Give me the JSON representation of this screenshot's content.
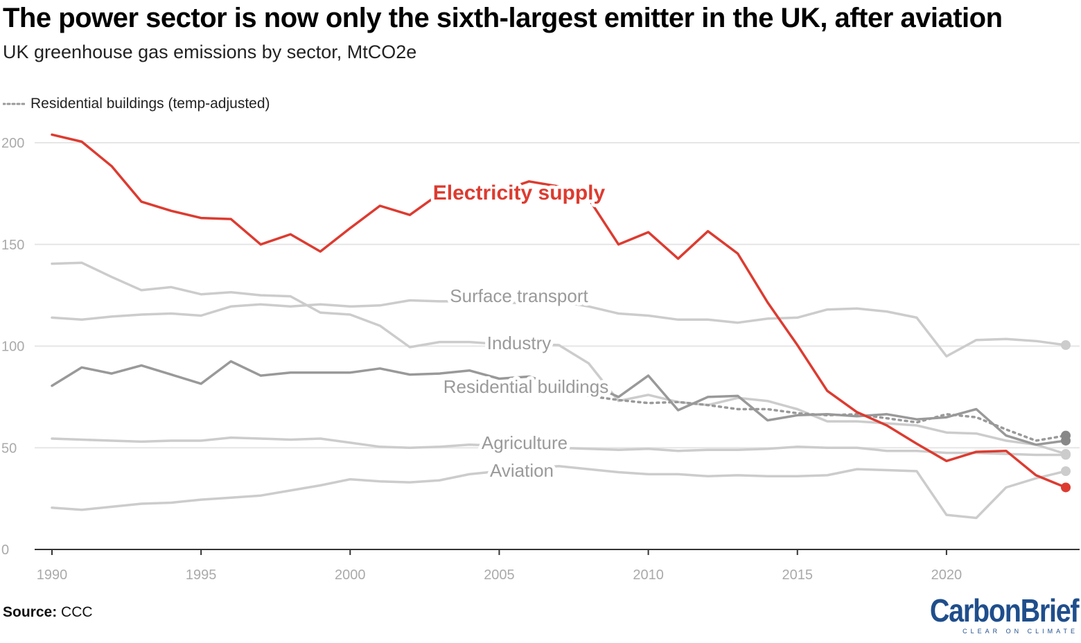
{
  "title": "The power sector is now only the sixth-largest emitter in the UK, after aviation",
  "subtitle": "UK greenhouse gas emissions by sector, MtCO2e",
  "legend": {
    "label": "Residential buildings (temp-adjusted)"
  },
  "source": {
    "label": "Source:",
    "text": "CCC"
  },
  "brand": {
    "name": "CarbonBrief",
    "tagline": "CLEAR ON CLIMATE"
  },
  "colors": {
    "electricity": "#dd3b30",
    "light": "#cccccc",
    "dark": "#999999",
    "grid": "#e6e6e6",
    "axis": "#333333"
  },
  "chart_data": {
    "type": "line",
    "title": "The power sector is now only the sixth-largest emitter in the UK, after aviation",
    "ylabel": "MtCO2e",
    "xlim": [
      1990,
      2024
    ],
    "ylim": [
      0,
      200
    ],
    "x_ticks": [
      1990,
      1995,
      2000,
      2005,
      2010,
      2015,
      2020
    ],
    "y_ticks": [
      0,
      50,
      100,
      150,
      200
    ],
    "grid": true,
    "series": [
      {
        "name": "Surface transport",
        "style": "light",
        "x": [
          1990,
          1991,
          1992,
          1993,
          1994,
          1995,
          1996,
          1997,
          1998,
          1999,
          2000,
          2001,
          2002,
          2003,
          2004,
          2005,
          2006,
          2007,
          2008,
          2009,
          2010,
          2011,
          2012,
          2013,
          2014,
          2015,
          2016,
          2017,
          2018,
          2019,
          2020,
          2021,
          2022,
          2023,
          2024
        ],
        "values": [
          114,
          113,
          114.5,
          115.5,
          116,
          115,
          119.5,
          120.5,
          119.5,
          120.5,
          119.5,
          120,
          122.5,
          122,
          122,
          121.5,
          121,
          122,
          119.5,
          116,
          115,
          113,
          113,
          111.5,
          113.5,
          114,
          118,
          118.5,
          117,
          114,
          95,
          103,
          103.5,
          102.5,
          100.5
        ]
      },
      {
        "name": "Industry",
        "style": "light",
        "x": [
          1990,
          1991,
          1992,
          1993,
          1994,
          1995,
          1996,
          1997,
          1998,
          1999,
          2000,
          2001,
          2002,
          2003,
          2004,
          2005,
          2006,
          2007,
          2008,
          2009,
          2010,
          2011,
          2012,
          2013,
          2014,
          2015,
          2016,
          2017,
          2018,
          2019,
          2020,
          2021,
          2022,
          2023,
          2024
        ],
        "values": [
          140.5,
          141,
          134,
          127.5,
          129,
          125.5,
          126.5,
          125,
          124.5,
          116.5,
          115.5,
          110,
          99.5,
          102,
          102,
          101,
          101,
          100.5,
          91.5,
          73,
          76,
          72.5,
          71,
          74.5,
          73,
          69,
          63,
          63,
          62,
          61,
          57.5,
          57,
          53.5,
          51.5,
          47
        ]
      },
      {
        "name": "Agriculture",
        "style": "light",
        "x": [
          1990,
          1991,
          1992,
          1993,
          1994,
          1995,
          1996,
          1997,
          1998,
          1999,
          2000,
          2001,
          2002,
          2003,
          2004,
          2005,
          2006,
          2007,
          2008,
          2009,
          2010,
          2011,
          2012,
          2013,
          2014,
          2015,
          2016,
          2017,
          2018,
          2019,
          2020,
          2021,
          2022,
          2023,
          2024
        ],
        "values": [
          54.5,
          54,
          53.5,
          53,
          53.5,
          53.5,
          55,
          54.5,
          54,
          54.5,
          52.5,
          50.5,
          50,
          50.5,
          51.5,
          51,
          51,
          50,
          49.5,
          49,
          49.5,
          48.5,
          49,
          49,
          49.5,
          50.5,
          50,
          50,
          48.5,
          48.5,
          47.5,
          47.5,
          47,
          46.5,
          46.5
        ]
      },
      {
        "name": "Aviation",
        "style": "light",
        "x": [
          1990,
          1991,
          1992,
          1993,
          1994,
          1995,
          1996,
          1997,
          1998,
          1999,
          2000,
          2001,
          2002,
          2003,
          2004,
          2005,
          2006,
          2007,
          2008,
          2009,
          2010,
          2011,
          2012,
          2013,
          2014,
          2015,
          2016,
          2017,
          2018,
          2019,
          2020,
          2021,
          2022,
          2023,
          2024
        ],
        "values": [
          20.5,
          19.5,
          21,
          22.5,
          23,
          24.5,
          25.5,
          26.5,
          29,
          31.5,
          34.5,
          33.5,
          33,
          34,
          37,
          38.5,
          40,
          41,
          39.5,
          38,
          37,
          37,
          36,
          36.5,
          36,
          36,
          36.5,
          39.5,
          39,
          38.5,
          17,
          15.5,
          30.5,
          35,
          38.5
        ]
      },
      {
        "name": "Residential buildings",
        "style": "dark",
        "x": [
          1990,
          1991,
          1992,
          1993,
          1994,
          1995,
          1996,
          1997,
          1998,
          1999,
          2000,
          2001,
          2002,
          2003,
          2004,
          2005,
          2006,
          2007,
          2008,
          2009,
          2010,
          2011,
          2012,
          2013,
          2014,
          2015,
          2016,
          2017,
          2018,
          2019,
          2020,
          2021,
          2022,
          2023,
          2024
        ],
        "values": [
          80.5,
          89.5,
          86.5,
          90.5,
          86,
          81.5,
          92.5,
          85.5,
          87,
          87,
          87,
          89,
          86,
          86.5,
          88,
          84,
          85,
          80.5,
          81.5,
          75,
          85.5,
          68.5,
          75,
          75.5,
          63.5,
          66,
          66.5,
          65.5,
          66.5,
          64,
          65,
          69,
          56,
          51.5,
          53.5
        ]
      },
      {
        "name": "Residential buildings (temp-adjusted)",
        "style": "dotted",
        "x": [
          2008,
          2009,
          2010,
          2011,
          2012,
          2013,
          2014,
          2015,
          2016,
          2017,
          2018,
          2019,
          2020,
          2021,
          2022,
          2023,
          2024
        ],
        "values": [
          75.5,
          73.5,
          72,
          72.5,
          71,
          69,
          69,
          67,
          66,
          66.5,
          64.5,
          62.5,
          66.5,
          65,
          59,
          53.5,
          56
        ]
      },
      {
        "name": "Electricity supply",
        "style": "electricity",
        "x": [
          1990,
          1991,
          1992,
          1993,
          1994,
          1995,
          1996,
          1997,
          1998,
          1999,
          2000,
          2001,
          2002,
          2003,
          2004,
          2005,
          2006,
          2007,
          2008,
          2009,
          2010,
          2011,
          2012,
          2013,
          2014,
          2015,
          2016,
          2017,
          2018,
          2019,
          2020,
          2021,
          2022,
          2023,
          2024
        ],
        "values": [
          204,
          200.5,
          188.5,
          171,
          166.5,
          163,
          162.5,
          150,
          155,
          146.5,
          158,
          169,
          164.5,
          175,
          178,
          176,
          181,
          178.5,
          172.5,
          150,
          156,
          143,
          156.5,
          145.5,
          121.5,
          100.5,
          78,
          67.5,
          61,
          52,
          43.5,
          48,
          48.5,
          36.5,
          30.5
        ]
      }
    ]
  },
  "labels": {
    "electricity": "Electricity supply",
    "surface_transport": "Surface transport",
    "industry": "Industry",
    "residential": "Residential buildings",
    "agriculture": "Agriculture",
    "aviation": "Aviation"
  }
}
